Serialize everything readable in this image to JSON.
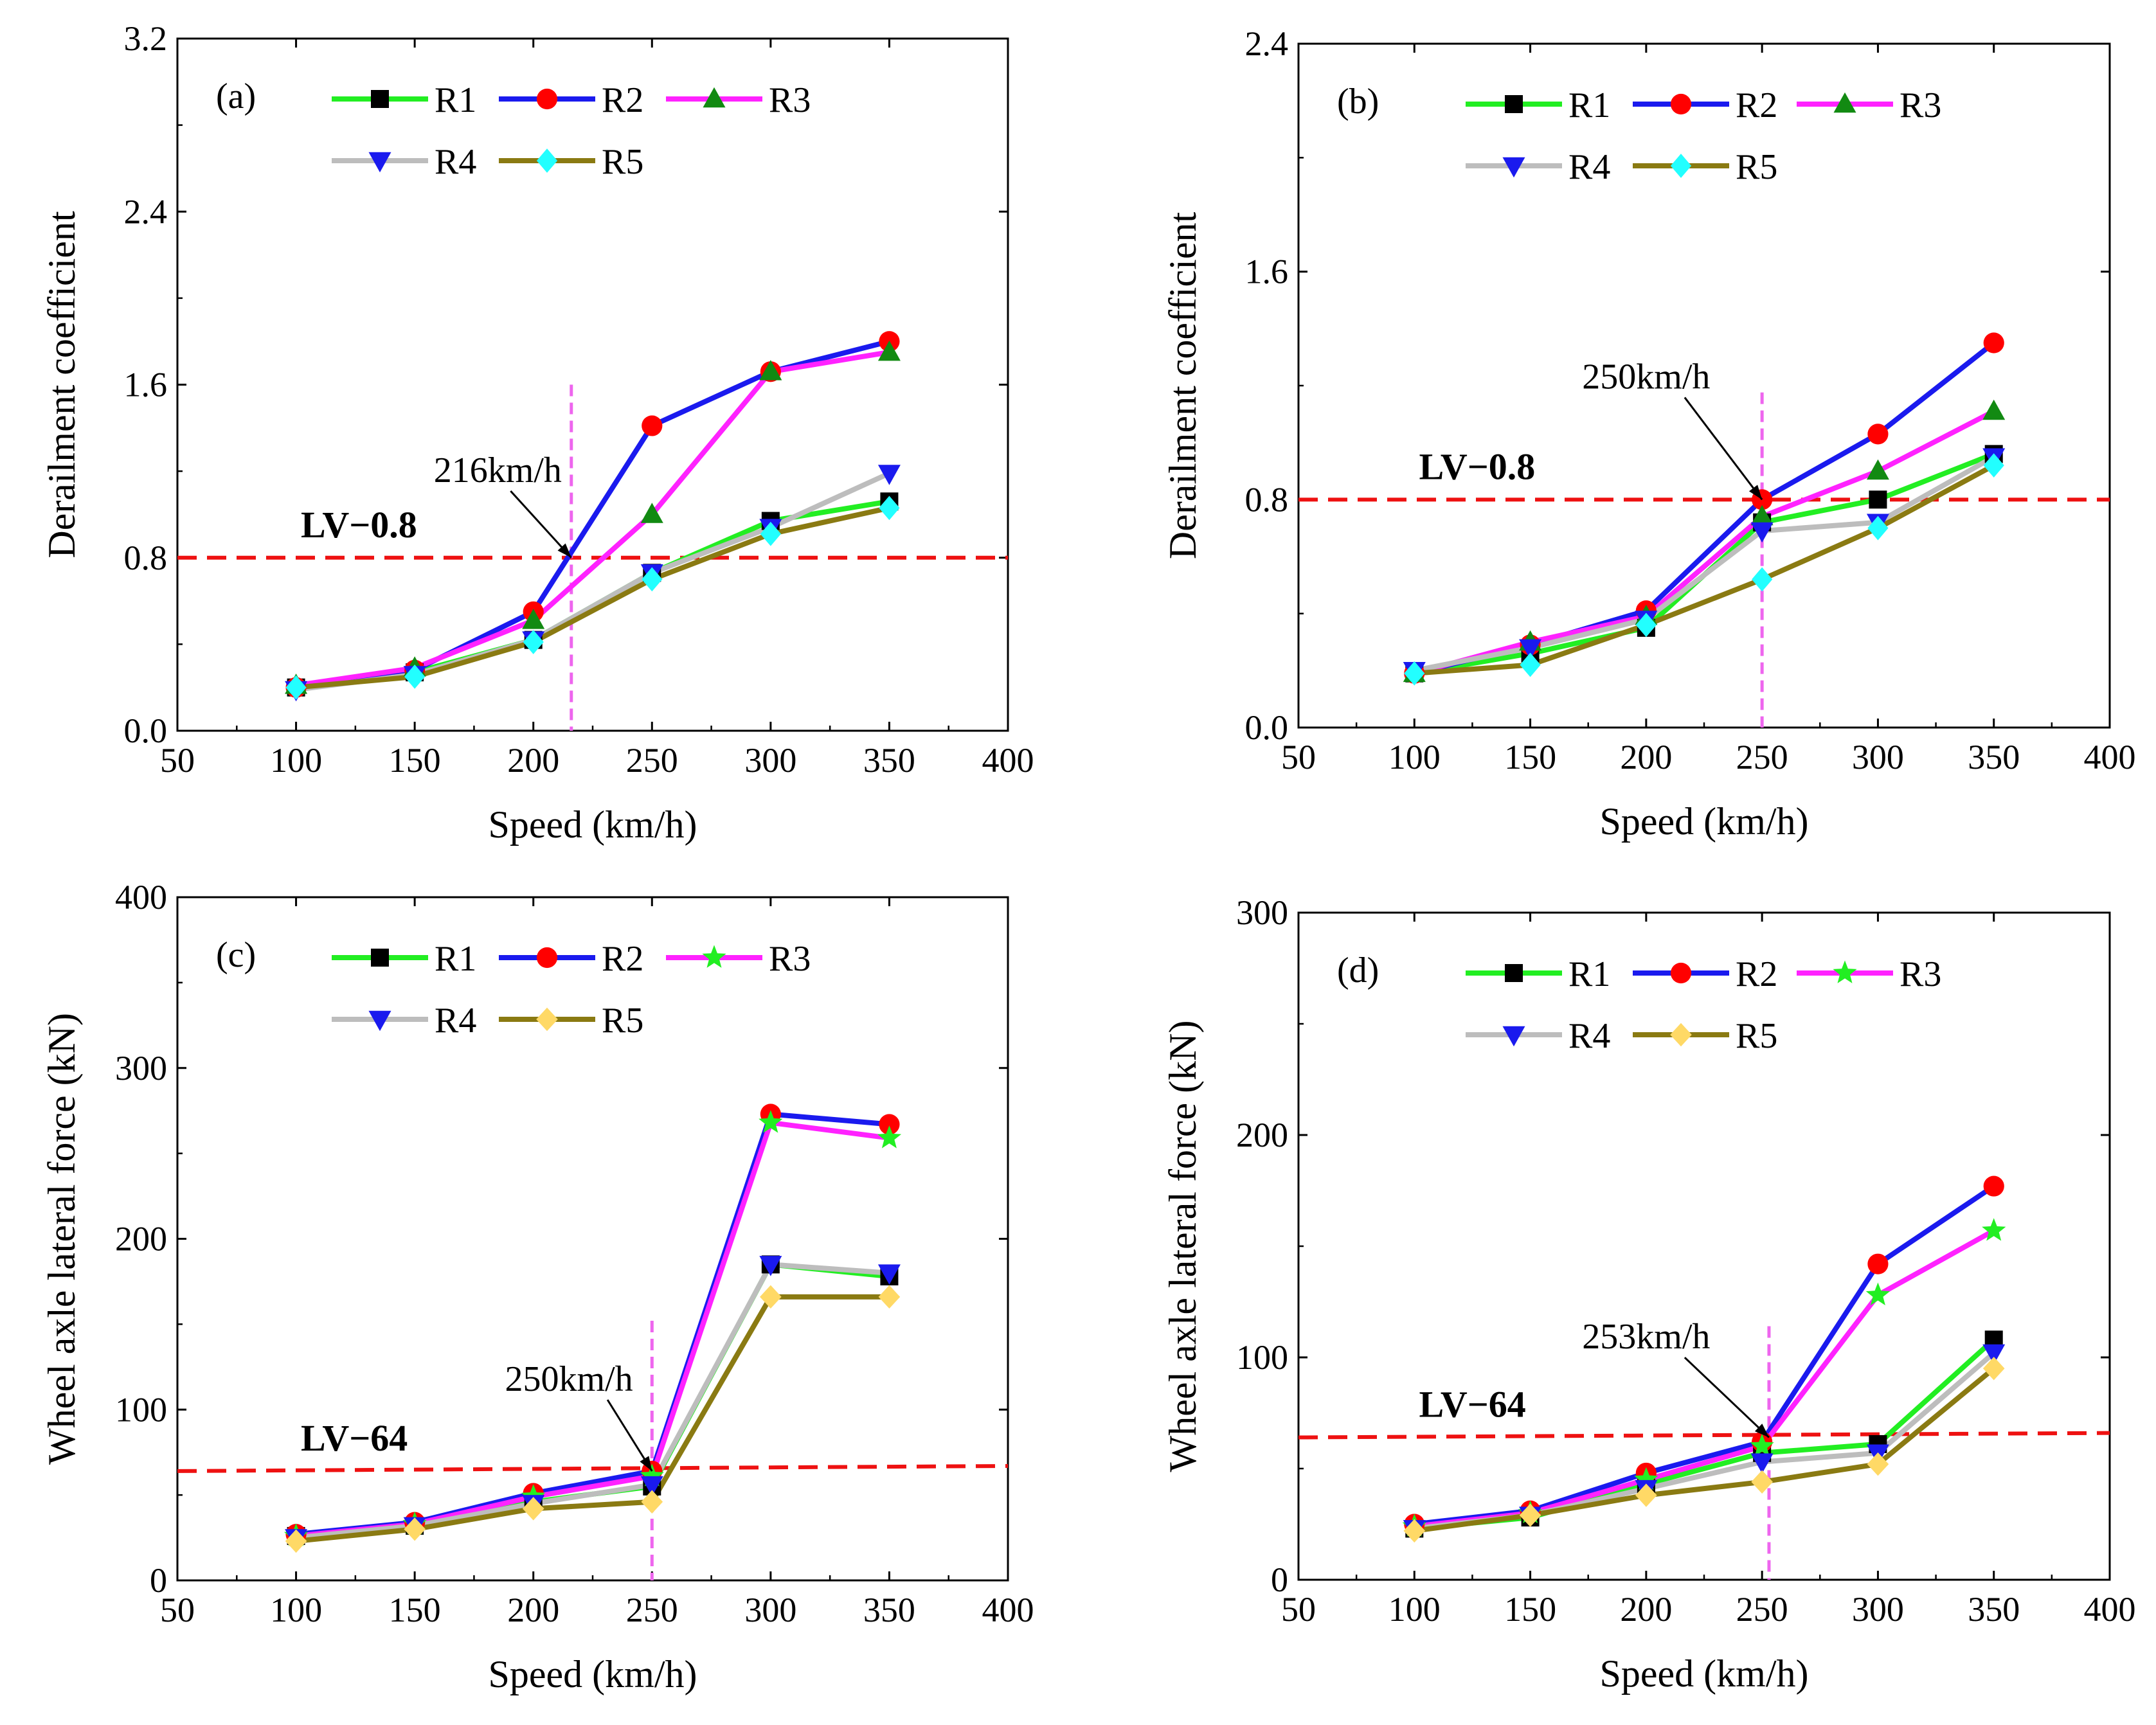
{
  "colors": {
    "R1": "#22ee22",
    "R2": "#1a1aee",
    "R3": "#ff22ff",
    "R4": "#bdbdbd",
    "R5": "#8a7a12",
    "threshold": "#ee1111",
    "vline": "#ee66ee",
    "marker_R1": "#000000",
    "marker_R2": "#ff0000",
    "marker_R3_tri": "#128a12",
    "marker_R3_star": "#22ee22",
    "marker_R4": "#1a1aee",
    "marker_R5_cyan": "#22ffff",
    "marker_R5_gold": "#ffd966"
  },
  "chart_data": [
    {
      "panel": "(a)",
      "type": "line",
      "xlabel": "Speed (km/h)",
      "ylabel": "Derailment coefficient",
      "xlim": [
        50,
        400
      ],
      "ylim": [
        0.0,
        3.2
      ],
      "xticks": [
        "50",
        "100",
        "150",
        "200",
        "250",
        "300",
        "350",
        "400"
      ],
      "yticks": [
        "0.0",
        "0.8",
        "1.6",
        "2.4",
        "3.2"
      ],
      "x": [
        100,
        150,
        200,
        250,
        300,
        350
      ],
      "series": [
        {
          "name": "R1",
          "marker": "square",
          "values": [
            0.2,
            0.27,
            0.42,
            0.73,
            0.97,
            1.06
          ]
        },
        {
          "name": "R2",
          "marker": "circle",
          "values": [
            0.2,
            0.28,
            0.55,
            1.41,
            1.66,
            1.8
          ]
        },
        {
          "name": "R3",
          "marker": "triangle-up",
          "values": [
            0.21,
            0.29,
            0.51,
            1.0,
            1.66,
            1.75
          ]
        },
        {
          "name": "R4",
          "marker": "triangle-down",
          "values": [
            0.19,
            0.26,
            0.42,
            0.73,
            0.94,
            1.19
          ]
        },
        {
          "name": "R5",
          "marker": "diamond-cyan",
          "values": [
            0.2,
            0.25,
            0.41,
            0.7,
            0.91,
            1.03
          ]
        }
      ],
      "threshold": {
        "value": 0.8,
        "label": "LV−0.8",
        "y_start": 0.8,
        "y_end": 0.8
      },
      "vline": {
        "x": 216,
        "label": "216km/h",
        "label_x": 185,
        "label_y": 1.15,
        "arrow_to_y": 0.8
      },
      "legend": "top-right"
    },
    {
      "panel": "(b)",
      "type": "line",
      "xlabel": "Speed (km/h)",
      "ylabel": "Derailment coefficient",
      "xlim": [
        50,
        400
      ],
      "ylim": [
        0.0,
        2.4
      ],
      "xticks": [
        "50",
        "100",
        "150",
        "200",
        "250",
        "300",
        "350",
        "400"
      ],
      "yticks": [
        "0.0",
        "0.8",
        "1.6",
        "2.4"
      ],
      "x": [
        100,
        150,
        200,
        250,
        300,
        350
      ],
      "series": [
        {
          "name": "R1",
          "marker": "square",
          "values": [
            0.19,
            0.26,
            0.35,
            0.72,
            0.8,
            0.96
          ]
        },
        {
          "name": "R2",
          "marker": "circle",
          "values": [
            0.19,
            0.29,
            0.41,
            0.8,
            1.03,
            1.35
          ]
        },
        {
          "name": "R3",
          "marker": "triangle-up",
          "values": [
            0.19,
            0.3,
            0.39,
            0.74,
            0.9,
            1.11
          ]
        },
        {
          "name": "R4",
          "marker": "triangle-down",
          "values": [
            0.2,
            0.28,
            0.38,
            0.69,
            0.72,
            0.95
          ]
        },
        {
          "name": "R5",
          "marker": "diamond-cyan",
          "values": [
            0.19,
            0.22,
            0.36,
            0.52,
            0.7,
            0.92
          ]
        }
      ],
      "threshold": {
        "value": 0.8,
        "label": "LV−0.8",
        "y_start": 0.8,
        "y_end": 0.8
      },
      "vline": {
        "x": 250,
        "label": "250km/h",
        "label_x": 200,
        "label_y": 1.19,
        "arrow_to_y": 0.8
      },
      "legend": "top-right"
    },
    {
      "panel": "(c)",
      "type": "line",
      "xlabel": "Speed (km/h)",
      "ylabel": "Wheel axle lateral force (kN)",
      "xlim": [
        50,
        400
      ],
      "ylim": [
        0,
        400
      ],
      "xticks": [
        "50",
        "100",
        "150",
        "200",
        "250",
        "300",
        "350",
        "400"
      ],
      "yticks": [
        "0",
        "100",
        "200",
        "300",
        "400"
      ],
      "x": [
        100,
        150,
        200,
        250,
        300,
        350
      ],
      "series": [
        {
          "name": "R1",
          "marker": "square",
          "values": [
            26,
            32,
            46,
            55,
            185,
            178
          ]
        },
        {
          "name": "R2",
          "marker": "circle",
          "values": [
            27,
            34,
            51,
            64,
            273,
            267
          ]
        },
        {
          "name": "R3",
          "marker": "star",
          "values": [
            26,
            33,
            49,
            61,
            268,
            259
          ]
        },
        {
          "name": "R4",
          "marker": "triangle-down",
          "values": [
            25,
            32,
            45,
            56,
            185,
            180
          ]
        },
        {
          "name": "R5",
          "marker": "diamond-gold",
          "values": [
            23,
            30,
            42,
            46,
            166,
            166
          ]
        }
      ],
      "threshold": {
        "value": 64,
        "label": "LV−64",
        "y_start": 64,
        "y_end": 67
      },
      "vline": {
        "x": 250,
        "label": "250km/h",
        "label_x": 215,
        "label_y": 111,
        "arrow_to_y": 64
      },
      "legend": "top-right"
    },
    {
      "panel": "(d)",
      "type": "line",
      "xlabel": "Speed (km/h)",
      "ylabel": "Wheel axle lateral force (kN)",
      "xlim": [
        50,
        400
      ],
      "ylim": [
        0,
        300
      ],
      "xticks": [
        "50",
        "100",
        "150",
        "200",
        "250",
        "300",
        "350",
        "400"
      ],
      "yticks": [
        "0",
        "100",
        "200",
        "300"
      ],
      "x": [
        100,
        150,
        200,
        250,
        300,
        350
      ],
      "series": [
        {
          "name": "R1",
          "marker": "square",
          "values": [
            23,
            28,
            43,
            57,
            61,
            108
          ]
        },
        {
          "name": "R2",
          "marker": "circle",
          "values": [
            25,
            31,
            48,
            62,
            142,
            177
          ]
        },
        {
          "name": "R3",
          "marker": "star",
          "values": [
            24,
            30,
            45,
            60,
            128,
            157
          ]
        },
        {
          "name": "R4",
          "marker": "triangle-down",
          "values": [
            23,
            29,
            41,
            53,
            57,
            102
          ]
        },
        {
          "name": "R5",
          "marker": "diamond-gold",
          "values": [
            22,
            29,
            38,
            44,
            52,
            95
          ]
        }
      ],
      "threshold": {
        "value": 64,
        "label": "LV−64",
        "y_start": 64,
        "y_end": 66
      },
      "vline": {
        "x": 253,
        "label": "253km/h",
        "label_x": 200,
        "label_y": 104,
        "arrow_to_y": 64
      },
      "legend": "top-right"
    }
  ]
}
